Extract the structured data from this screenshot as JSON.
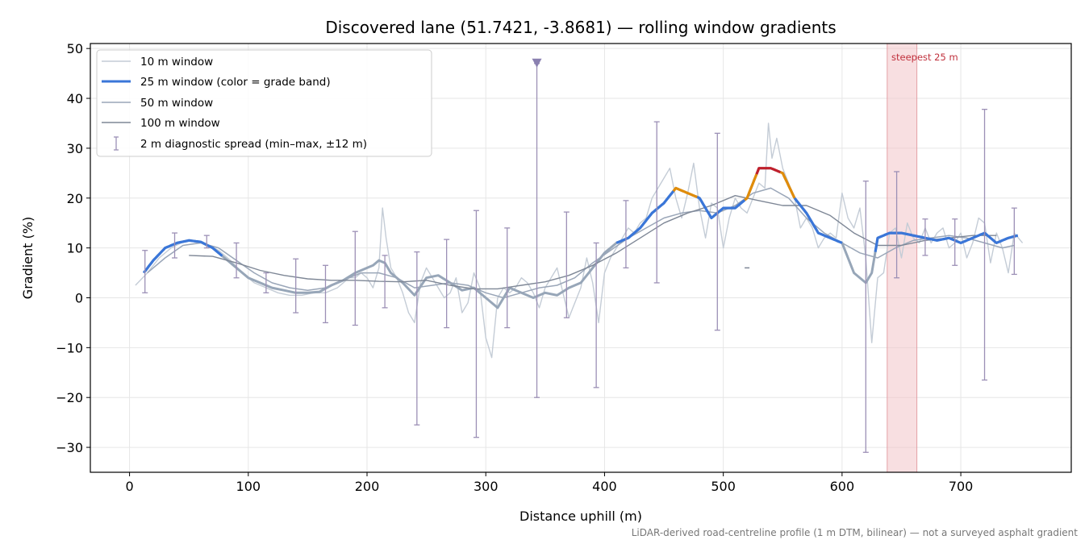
{
  "chart_data": {
    "type": "line",
    "title": "Discovered lane (51.7421, -3.8681) — rolling window gradients",
    "xlabel": "Distance uphill (m)",
    "ylabel": "Gradient (%)",
    "xlim": [
      -33,
      793
    ],
    "ylim": [
      -35,
      51
    ],
    "x_ticks": [
      0,
      100,
      200,
      300,
      400,
      500,
      600,
      700
    ],
    "y_ticks": [
      -30,
      -20,
      -10,
      0,
      10,
      20,
      30,
      40,
      50
    ],
    "x_tick_labels": [
      "0",
      "100",
      "200",
      "300",
      "400",
      "500",
      "600",
      "700"
    ],
    "y_tick_labels": [
      "−30",
      "−20",
      "−10",
      "0",
      "10",
      "20",
      "30",
      "40",
      "50"
    ],
    "grid": true,
    "legend_position": "top-left",
    "footnote": "LiDAR-derived road-centreline profile (1 m DTM, bilinear) — not a surveyed asphalt gradient",
    "colors": {
      "w10": "#c4ccd6",
      "w25_gray": "#97a6b8",
      "w50": "#9aa6b8",
      "w100": "#7e8796",
      "diag": "#9c90b6",
      "grade_blue": "#3a76d8",
      "grade_orange": "#e08c0a",
      "grade_red": "#c0202c",
      "steep_span": "#f2c4c8",
      "steep_text": "#c0303c"
    },
    "series": [
      {
        "name": "10 m window",
        "role": "w10",
        "x": [
          5,
          15,
          25,
          35,
          45,
          55,
          65,
          75,
          85,
          95,
          105,
          115,
          125,
          135,
          145,
          155,
          165,
          175,
          180,
          185,
          190,
          195,
          200,
          205,
          210,
          213,
          216,
          220,
          225,
          230,
          235,
          240,
          245,
          250,
          255,
          260,
          265,
          270,
          275,
          280,
          285,
          290,
          295,
          300,
          305,
          310,
          315,
          320,
          325,
          330,
          335,
          340,
          345,
          350,
          355,
          360,
          365,
          370,
          375,
          380,
          385,
          390,
          395,
          400,
          405,
          410,
          415,
          420,
          425,
          430,
          435,
          440,
          445,
          450,
          455,
          460,
          465,
          470,
          475,
          480,
          485,
          490,
          495,
          500,
          505,
          510,
          515,
          520,
          525,
          530,
          535,
          538,
          541,
          545,
          550,
          555,
          560,
          565,
          570,
          575,
          580,
          585,
          590,
          595,
          600,
          605,
          610,
          615,
          620,
          625,
          630,
          635,
          640,
          645,
          650,
          655,
          660,
          665,
          670,
          675,
          680,
          685,
          690,
          695,
          700,
          705,
          710,
          715,
          720,
          725,
          730,
          735,
          740,
          745,
          752
        ],
        "values": [
          2.5,
          5,
          8,
          10,
          11.2,
          11.5,
          10.8,
          9.5,
          7.5,
          5,
          3,
          2,
          1,
          0.5,
          0.5,
          1,
          1,
          2,
          3,
          4,
          4,
          5,
          4,
          2,
          6,
          18,
          12,
          6,
          4,
          1,
          -3,
          -5,
          3,
          6,
          4,
          2,
          0,
          1,
          4,
          -3,
          -1,
          5,
          2,
          -8,
          -12,
          0,
          2,
          1,
          2,
          4,
          3,
          1,
          -2,
          2,
          4,
          6,
          1,
          -4,
          -1,
          2,
          8,
          3,
          -5,
          5,
          8,
          10,
          12,
          14,
          13,
          15,
          16,
          20,
          22,
          24,
          26,
          20,
          16,
          21,
          27,
          18,
          12,
          19,
          18,
          10,
          16,
          20,
          18,
          17,
          20,
          23,
          22,
          35,
          28,
          32,
          26,
          23,
          20,
          14,
          16,
          14,
          10,
          12,
          13,
          12,
          21,
          16,
          14,
          18,
          8,
          -9,
          4,
          5,
          13,
          14,
          8,
          15,
          12,
          11,
          14,
          11,
          13,
          14,
          10,
          11,
          13,
          8,
          11,
          16,
          15,
          7,
          13,
          10,
          5,
          13,
          11
        ]
      },
      {
        "name": "25 m window (color = grade band)",
        "role": "w25",
        "x": [
          12,
          20,
          30,
          40,
          50,
          60,
          70,
          80,
          90,
          100,
          110,
          120,
          130,
          140,
          150,
          160,
          170,
          180,
          190,
          200,
          205,
          210,
          215,
          220,
          230,
          240,
          250,
          260,
          270,
          280,
          290,
          300,
          310,
          320,
          330,
          340,
          350,
          360,
          370,
          380,
          390,
          400,
          410,
          420,
          430,
          440,
          450,
          460,
          470,
          480,
          490,
          500,
          510,
          520,
          530,
          540,
          550,
          560,
          570,
          580,
          590,
          600,
          610,
          620,
          625,
          630,
          640,
          650,
          660,
          670,
          680,
          690,
          700,
          710,
          720,
          730,
          740,
          748
        ],
        "values": [
          5,
          7.5,
          10,
          11,
          11.5,
          11.2,
          10,
          8,
          6,
          4,
          3,
          2,
          1.5,
          1,
          1,
          1.2,
          2.5,
          3.5,
          5,
          6,
          6.5,
          7.5,
          7,
          5,
          3,
          0.5,
          4,
          4.5,
          3,
          1.5,
          2,
          0,
          -2,
          2,
          1,
          0,
          1,
          0.5,
          2,
          3,
          6,
          9,
          11,
          12,
          14,
          17,
          19,
          22,
          21,
          20,
          16,
          18,
          18,
          20,
          26,
          26,
          25,
          20,
          17,
          13,
          12,
          11,
          5,
          3,
          5,
          12,
          13,
          13,
          12.5,
          12,
          11.5,
          12,
          11,
          12,
          13,
          11,
          12,
          12.5
        ],
        "grade_band": [
          {
            "from": 12,
            "to": 78,
            "band": "blue"
          },
          {
            "from": 410,
            "to": 458,
            "band": "blue"
          },
          {
            "from": 458,
            "to": 478,
            "band": "orange"
          },
          {
            "from": 478,
            "to": 518,
            "band": "blue"
          },
          {
            "from": 518,
            "to": 528,
            "band": "orange"
          },
          {
            "from": 528,
            "to": 548,
            "band": "red"
          },
          {
            "from": 548,
            "to": 560,
            "band": "orange"
          },
          {
            "from": 560,
            "to": 600,
            "band": "blue"
          },
          {
            "from": 628,
            "to": 748,
            "band": "blue"
          }
        ]
      },
      {
        "name": "50 m window",
        "role": "w50",
        "x": [
          15,
          30,
          45,
          60,
          75,
          90,
          105,
          120,
          135,
          150,
          165,
          180,
          195,
          210,
          225,
          240,
          255,
          270,
          285,
          300,
          315,
          330,
          345,
          360,
          375,
          390,
          405,
          420,
          435,
          450,
          465,
          480,
          495,
          510,
          525,
          540,
          555,
          570,
          585,
          600,
          615,
          630,
          645,
          660,
          675,
          690,
          705,
          720,
          735,
          745
        ],
        "values": [
          5,
          8,
          10.5,
          11,
          10,
          7.5,
          5,
          3,
          2,
          1.5,
          2,
          3.5,
          5,
          5,
          4,
          2,
          2.5,
          3,
          2.5,
          1,
          0,
          1,
          2,
          2.5,
          4,
          7,
          9.5,
          12,
          14,
          16,
          17,
          17.5,
          17,
          18.5,
          21,
          22,
          20,
          16,
          13,
          11,
          9,
          8,
          10,
          11.5,
          12,
          12.5,
          12,
          11,
          10,
          10.5
        ]
      },
      {
        "name": "100 m window",
        "role": "w100",
        "x": [
          50,
          70,
          90,
          110,
          130,
          150,
          170,
          190,
          210,
          230,
          250,
          270,
          290,
          310,
          330,
          350,
          370,
          390,
          410,
          430,
          450,
          470,
          490,
          510,
          530,
          550,
          570,
          590,
          610,
          630,
          650,
          670,
          690,
          710,
          730
        ],
        "values": [
          8.5,
          8.3,
          7,
          5.5,
          4.5,
          3.8,
          3.5,
          3.5,
          3.3,
          3.2,
          3.5,
          2.5,
          1.8,
          1.8,
          2.5,
          3.2,
          4.5,
          6.5,
          9,
          12,
          15,
          17,
          18.5,
          20.5,
          19.5,
          18.5,
          18.5,
          16.5,
          13,
          10.5,
          10.5,
          11.5,
          12,
          12.5,
          12.5
        ]
      }
    ],
    "diagnostic_spread": {
      "name": "2 m diagnostic spread (min–max, ±12 m)",
      "x": [
        13,
        38,
        65,
        90,
        115,
        140,
        165,
        190,
        215,
        242,
        267,
        292,
        318,
        343,
        368,
        393,
        418,
        444,
        495,
        620,
        646,
        670,
        695,
        720,
        745
      ],
      "low": [
        1,
        8,
        10,
        4,
        1,
        -3,
        -5,
        -5.5,
        -2,
        -25.5,
        -6,
        -28,
        -6,
        -20,
        -4,
        -18,
        6,
        3,
        -6.5,
        -31,
        4,
        8.5,
        6.5,
        -16.5,
        4.7
      ],
      "high": [
        9.5,
        13,
        12.5,
        11,
        5,
        7.8,
        6.5,
        13.3,
        8.5,
        9.2,
        11.7,
        17.5,
        14,
        47,
        17.2,
        11,
        19.5,
        35.3,
        33,
        23.4,
        25.3,
        15.8,
        15.8,
        37.8,
        18
      ]
    },
    "outlier_marker": {
      "x": 343,
      "value": 47
    },
    "stray_point": {
      "x": 520,
      "value": 6
    },
    "steepest_span": {
      "from": 638,
      "to": 663,
      "label": "steepest 25 m"
    }
  }
}
